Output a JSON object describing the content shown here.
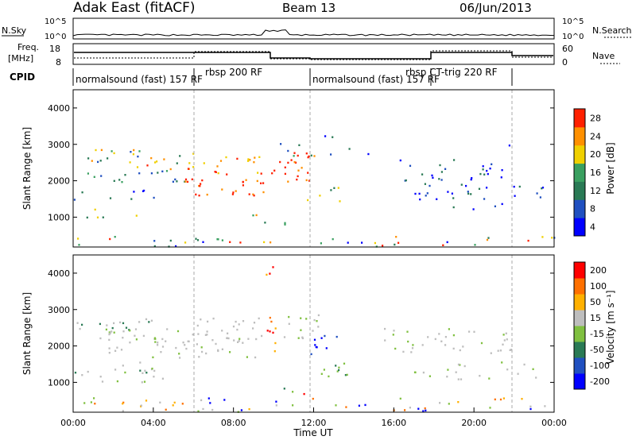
{
  "header": {
    "station": "Adak East (fitACF)",
    "beam": "Beam 13",
    "date": "06/Jun/2013"
  },
  "left_labels": {
    "nsky": "N.Sky",
    "freq_line1": "Freq.",
    "freq_line2": "[MHz]",
    "cpid": "CPID"
  },
  "right_labels": {
    "nsearch": "N.Search",
    "nave": "Nave"
  },
  "ticks": {
    "noise_left_top": "10^5",
    "noise_left_bottom": "10^0",
    "noise_right_top": "10^5",
    "noise_right_bottom": "10^0",
    "freq_left_top": "18",
    "freq_left_bottom": "8",
    "nave_right_top": "60",
    "nave_right_bottom": "0"
  },
  "cpid_segments": [
    {
      "label": "normalsound (fast) 157 RF"
    },
    {
      "label": "rbsp 200 RF"
    },
    {
      "label": "normalsound (fast) 157 RF"
    },
    {
      "label": "rbsp CT-trig 220 RF"
    }
  ],
  "chart_data": [
    {
      "type": "heatmap",
      "panel": "power",
      "ylabel": "Slant Range [km]",
      "yticks": [
        "1000",
        "2000",
        "3000",
        "4000"
      ],
      "colorbar_label": "Power [dB]",
      "colorbar_ticks": [
        "28",
        "24",
        "20",
        "16",
        "12",
        "8",
        "4"
      ],
      "colors": [
        "#0000ff",
        "#2050c0",
        "#2a7a55",
        "#3aa060",
        "#f0d000",
        "#ff9000",
        "#ff2000"
      ]
    },
    {
      "type": "heatmap",
      "panel": "velocity",
      "ylabel": "Slant Range [km]",
      "yticks": [
        "1000",
        "2000",
        "3000",
        "4000"
      ],
      "xlabel": "Time UT",
      "xticks": [
        "00:00",
        "04:00",
        "08:00",
        "12:00",
        "16:00",
        "20:00",
        "00:00"
      ],
      "colorbar_label": "Velocity [m s⁻¹]",
      "colorbar_ticks": [
        "200",
        "100",
        "50",
        "15",
        "-15",
        "-50",
        "-100",
        "-200"
      ],
      "colors": [
        "#0000ff",
        "#2050c0",
        "#2a7a55",
        "#80c040",
        "#bebebe",
        "#ffb000",
        "#ff7000",
        "#ff0000"
      ]
    }
  ]
}
